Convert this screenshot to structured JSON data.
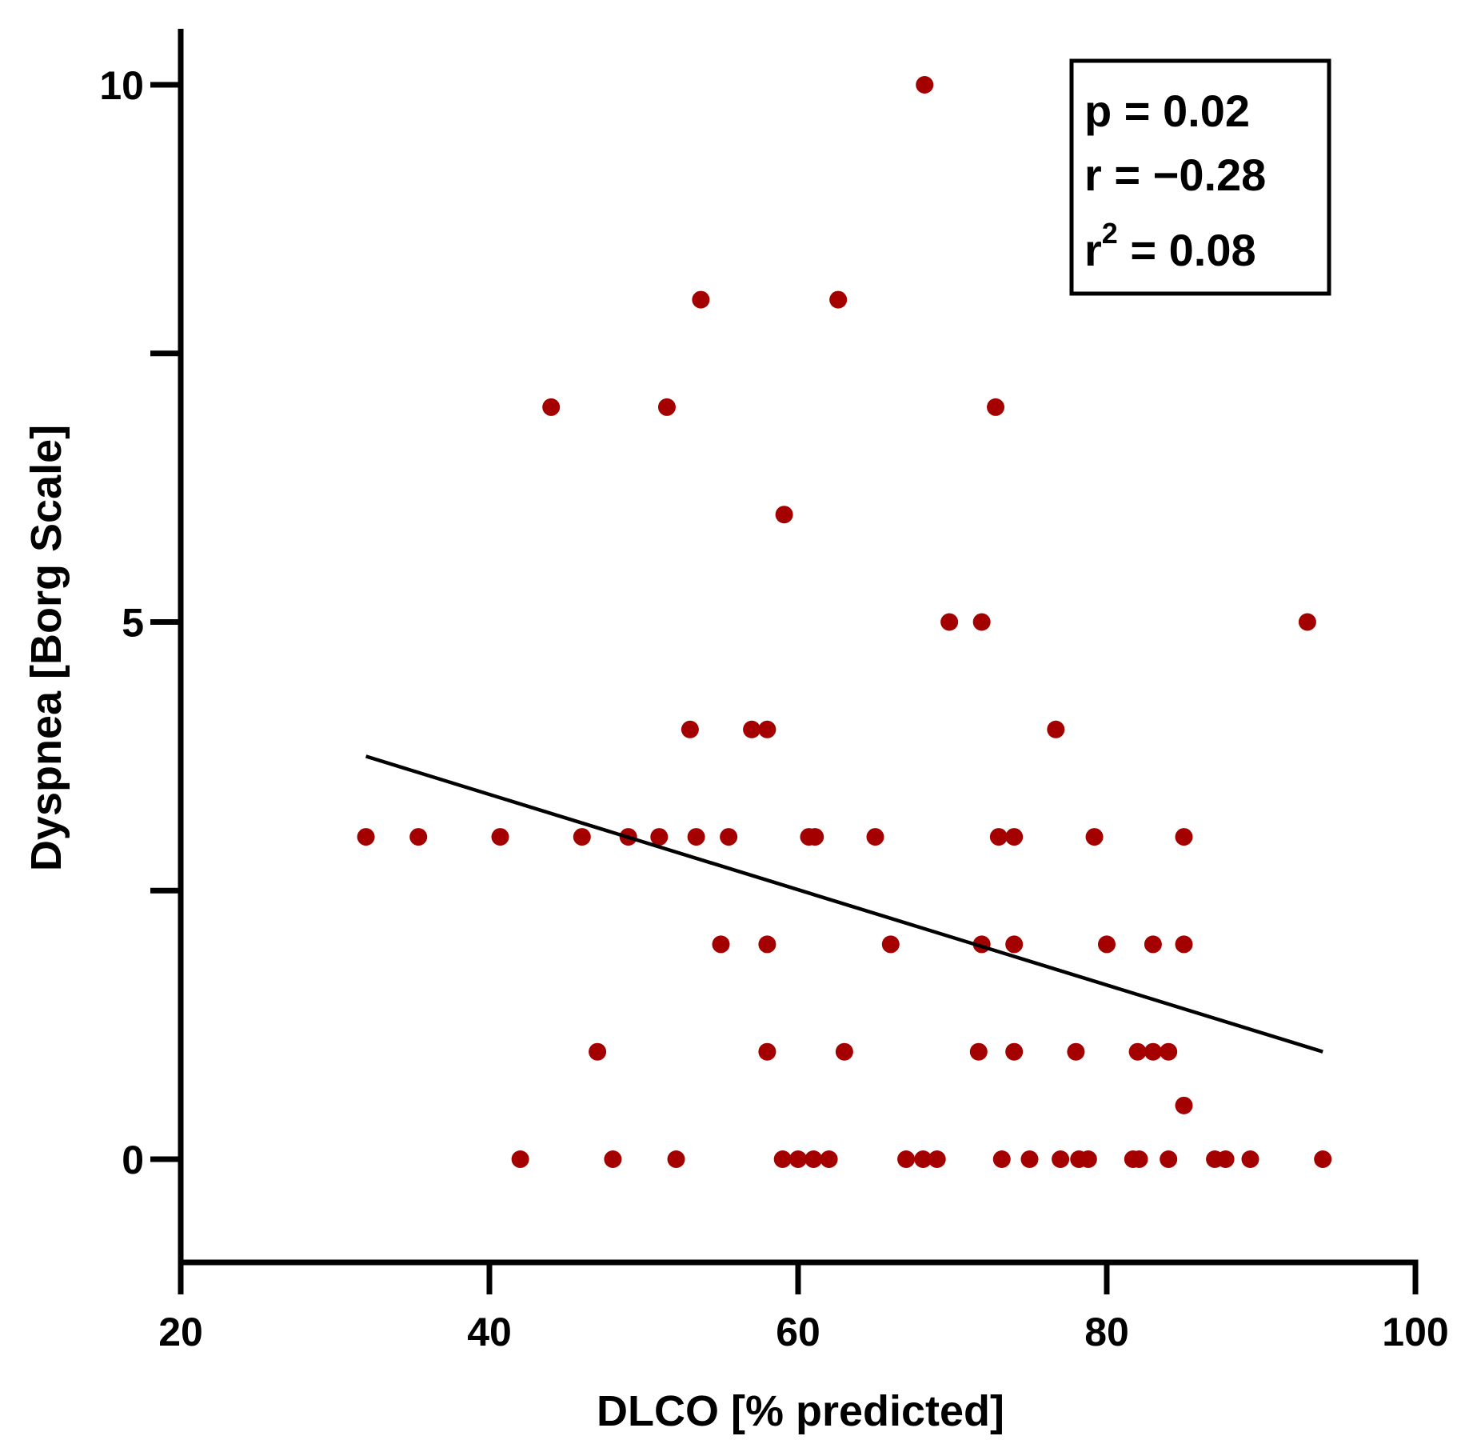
{
  "chart_data": {
    "type": "scatter",
    "xlabel": "DLCO [% predicted]",
    "ylabel": "Dyspnea [Borg Scale]",
    "xlim": [
      20,
      100
    ],
    "ylim": [
      -1,
      10.5
    ],
    "x_ticks": [
      20,
      40,
      60,
      80,
      100
    ],
    "x_tick_labels": [
      "20",
      "40",
      "60",
      "80",
      "100"
    ],
    "y_ticks": [
      0,
      2.5,
      5,
      7.5,
      10
    ],
    "y_tick_labels": [
      "0",
      "",
      "5",
      "",
      "10"
    ],
    "colors": {
      "point": "#a50000",
      "line": "#000000",
      "axis": "#000000"
    },
    "stats": {
      "p_line": "p = 0.02",
      "r_line": "r = −0.28",
      "r2_prefix": "r",
      "r2_exponent": "2",
      "r2_suffix": " = 0.08"
    },
    "regression": {
      "x": [
        32,
        94
      ],
      "y": [
        3.75,
        1.0
      ]
    },
    "points": [
      [
        68.2,
        10.0
      ],
      [
        53.7,
        8.0
      ],
      [
        62.6,
        8.0
      ],
      [
        44.0,
        7.0
      ],
      [
        51.5,
        7.0
      ],
      [
        72.8,
        7.0
      ],
      [
        59.1,
        6.0
      ],
      [
        69.8,
        5.0
      ],
      [
        71.9,
        5.0
      ],
      [
        93.0,
        5.0
      ],
      [
        53.0,
        4.0
      ],
      [
        57.0,
        4.0
      ],
      [
        58.0,
        4.0
      ],
      [
        76.7,
        4.0
      ],
      [
        32.0,
        3.0
      ],
      [
        35.4,
        3.0
      ],
      [
        40.7,
        3.0
      ],
      [
        46.0,
        3.0
      ],
      [
        49.0,
        3.0
      ],
      [
        51.0,
        3.0
      ],
      [
        53.4,
        3.0
      ],
      [
        55.5,
        3.0
      ],
      [
        60.7,
        3.0
      ],
      [
        61.1,
        3.0
      ],
      [
        65.0,
        3.0
      ],
      [
        73.0,
        3.0
      ],
      [
        74.0,
        3.0
      ],
      [
        79.2,
        3.0
      ],
      [
        85.0,
        3.0
      ],
      [
        55.0,
        2.0
      ],
      [
        58.0,
        2.0
      ],
      [
        66.0,
        2.0
      ],
      [
        71.9,
        2.0
      ],
      [
        74.0,
        2.0
      ],
      [
        80.0,
        2.0
      ],
      [
        83.0,
        2.0
      ],
      [
        85.0,
        2.0
      ],
      [
        47.0,
        1.0
      ],
      [
        58.0,
        1.0
      ],
      [
        63.0,
        1.0
      ],
      [
        71.7,
        1.0
      ],
      [
        74.0,
        1.0
      ],
      [
        78.0,
        1.0
      ],
      [
        82.0,
        1.0
      ],
      [
        83.0,
        1.0
      ],
      [
        84.0,
        1.0
      ],
      [
        85.0,
        0.5
      ],
      [
        42.0,
        0.0
      ],
      [
        48.0,
        0.0
      ],
      [
        52.1,
        0.0
      ],
      [
        59.0,
        0.0
      ],
      [
        60.0,
        0.0
      ],
      [
        61.0,
        0.0
      ],
      [
        62.0,
        0.0
      ],
      [
        67.0,
        0.0
      ],
      [
        68.1,
        0.0
      ],
      [
        69.0,
        0.0
      ],
      [
        73.2,
        0.0
      ],
      [
        75.0,
        0.0
      ],
      [
        77.0,
        0.0
      ],
      [
        78.2,
        0.0
      ],
      [
        78.8,
        0.0
      ],
      [
        81.7,
        0.0
      ],
      [
        82.1,
        0.0
      ],
      [
        84.0,
        0.0
      ],
      [
        87.0,
        0.0
      ],
      [
        87.7,
        0.0
      ],
      [
        89.3,
        0.0
      ],
      [
        94.0,
        0.0
      ]
    ]
  }
}
